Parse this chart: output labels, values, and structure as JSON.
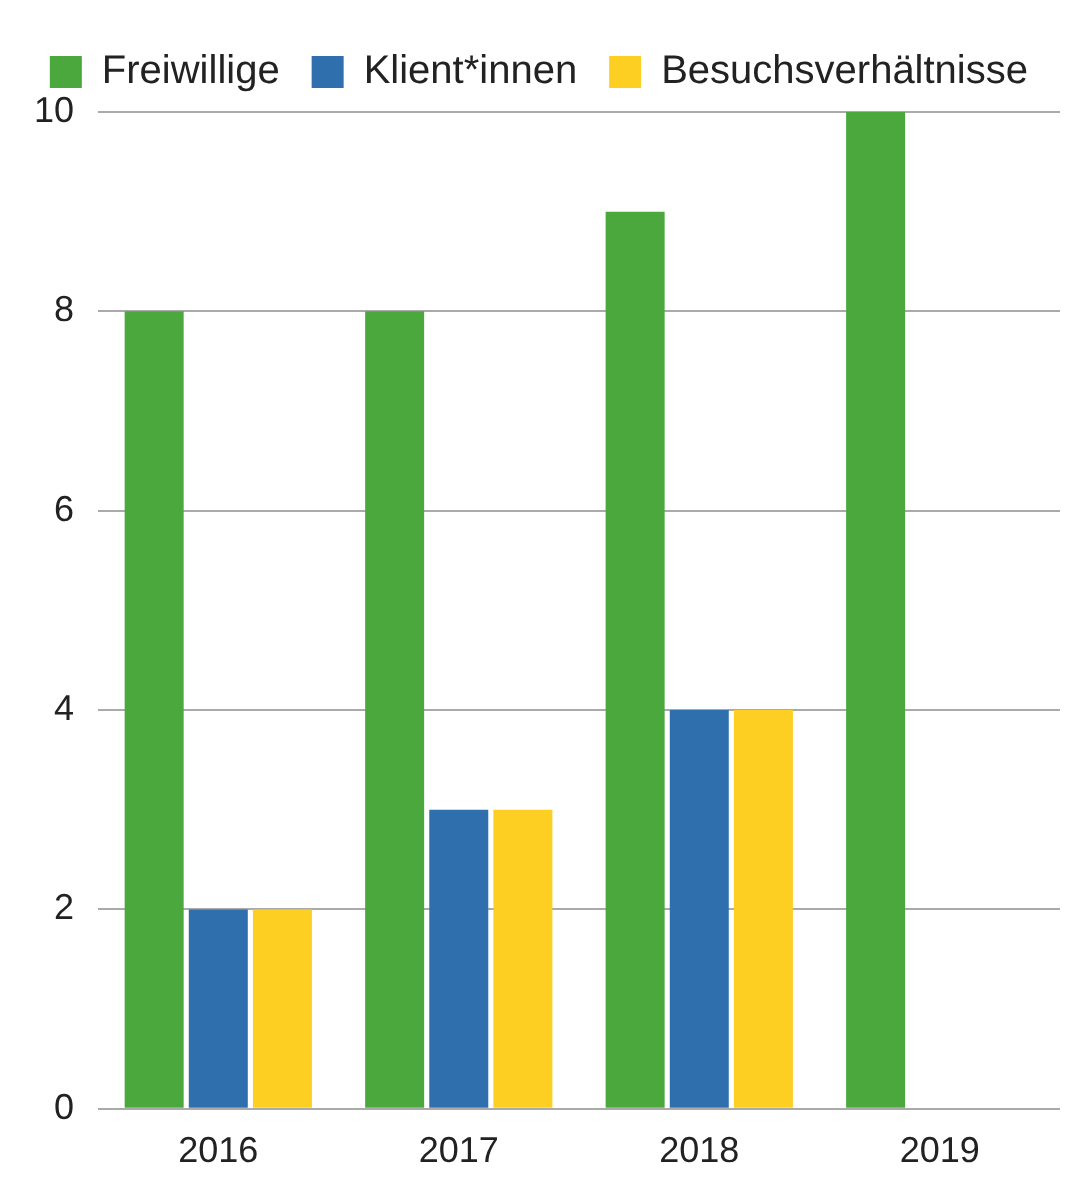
{
  "chart_data": {
    "type": "bar",
    "categories": [
      "2016",
      "2017",
      "2018",
      "2019"
    ],
    "series": [
      {
        "name": "Freiwillige",
        "color": "#4aa83d",
        "values": [
          8,
          8,
          9,
          10
        ]
      },
      {
        "name": "Klient*innen",
        "color": "#2f6fad",
        "values": [
          2,
          3,
          4,
          null
        ]
      },
      {
        "name": "Besuchsverhältnisse",
        "color": "#fccf22",
        "values": [
          2,
          3,
          4,
          null
        ]
      }
    ],
    "ylim": [
      0,
      10
    ],
    "yticks": [
      0,
      2,
      4,
      6,
      8,
      10
    ],
    "grid": "y",
    "legend": "top right"
  }
}
